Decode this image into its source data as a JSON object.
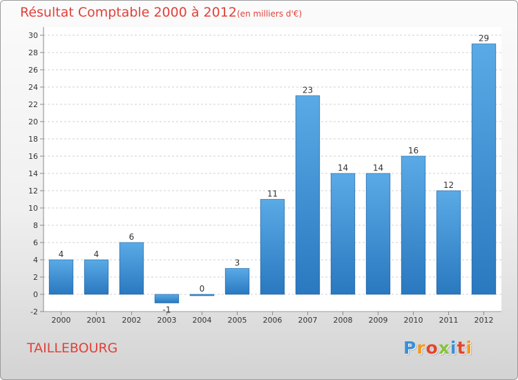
{
  "header": {
    "title": "Résultat Comptable 2000 à 2012",
    "subtitle": "(en milliers d'€)"
  },
  "commune": "TAILLEBOURG",
  "logo": {
    "text": "Proxiti",
    "letter_colors": [
      "#3a8fd8",
      "#f39a1e",
      "#e2452f",
      "#86c43a",
      "#3a8fd8",
      "#e2452f",
      "#f39a1e"
    ]
  },
  "chart_data": {
    "type": "bar",
    "title": "Résultat Comptable 2000 à 2012",
    "subtitle": "(en milliers d'€)",
    "categories": [
      "2000",
      "2001",
      "2002",
      "2003",
      "2004",
      "2005",
      "2006",
      "2007",
      "2008",
      "2009",
      "2010",
      "2011",
      "2012"
    ],
    "values": [
      4,
      4,
      6,
      -1,
      0,
      3,
      11,
      23,
      14,
      14,
      16,
      12,
      29
    ],
    "labels": [
      "4",
      "4",
      "6",
      "-1",
      "0",
      "3",
      "11",
      "23",
      "14",
      "14",
      "16",
      "12",
      "29"
    ],
    "ylim": [
      -2,
      30
    ],
    "yticks": [
      -2,
      0,
      2,
      4,
      6,
      8,
      10,
      12,
      14,
      16,
      18,
      20,
      22,
      24,
      26,
      28,
      30
    ],
    "grid": "horizontal dashed",
    "xlabel": "",
    "ylabel": "",
    "colors": {
      "bar_light": "#5aaae6",
      "bar_dark": "#2a78bf",
      "grid": "#cfcfcf",
      "axis": "#888888",
      "text": "#333333"
    }
  }
}
